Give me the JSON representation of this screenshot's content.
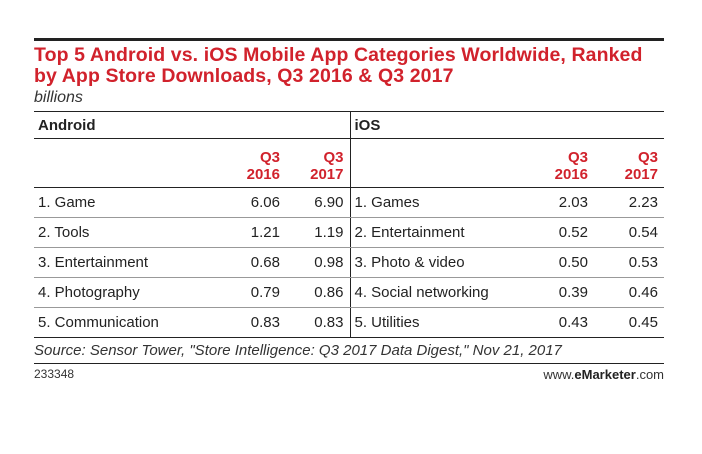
{
  "chart_data": {
    "type": "table",
    "title": "Top 5 Android vs. iOS Mobile App Categories Worldwide, Ranked by App Store Downloads, Q3 2016 & Q3 2017",
    "subtitle": "billions",
    "sections": [
      {
        "name": "Android",
        "columns": [
          "Q3 2016",
          "Q3 2017"
        ],
        "rows": [
          {
            "category": "1. Game",
            "values": [
              "6.06",
              "6.90"
            ]
          },
          {
            "category": "2. Tools",
            "values": [
              "1.21",
              "1.19"
            ]
          },
          {
            "category": "3. Entertainment",
            "values": [
              "0.68",
              "0.98"
            ]
          },
          {
            "category": "4. Photography",
            "values": [
              "0.79",
              "0.86"
            ]
          },
          {
            "category": "5. Communication",
            "values": [
              "0.83",
              "0.83"
            ]
          }
        ]
      },
      {
        "name": "iOS",
        "columns": [
          "Q3 2016",
          "Q3 2017"
        ],
        "rows": [
          {
            "category": "1. Games",
            "values": [
              "2.03",
              "2.23"
            ]
          },
          {
            "category": "2. Entertainment",
            "values": [
              "0.52",
              "0.54"
            ]
          },
          {
            "category": "3. Photo & video",
            "values": [
              "0.50",
              "0.53"
            ]
          },
          {
            "category": "4. Social networking",
            "values": [
              "0.39",
              "0.46"
            ]
          },
          {
            "category": "5. Utilities",
            "values": [
              "0.43",
              "0.45"
            ]
          }
        ]
      }
    ],
    "source": "Source: Sensor Tower, \"Store Intelligence: Q3 2017 Data Digest,\" Nov 21, 2017"
  },
  "footer": {
    "chart_id": "233348",
    "brand_prefix": "www.",
    "brand_name": "eMarketer",
    "brand_suffix": ".com"
  },
  "colors": {
    "title": "#d1222c",
    "column_header": "#d1222c",
    "text": "#222222"
  }
}
